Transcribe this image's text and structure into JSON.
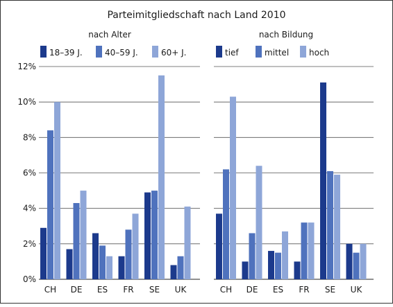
{
  "chart_data": [
    {
      "type": "bar",
      "title": "Parteimitgliedschaft nach Land 2010",
      "subtitle": "nach Alter",
      "categories": [
        "CH",
        "DE",
        "ES",
        "FR",
        "SE",
        "UK"
      ],
      "y_ticks": [
        "0%",
        "2%",
        "4%",
        "6%",
        "8%",
        "10%",
        "12%"
      ],
      "ylim": [
        0,
        12
      ],
      "y_unit": "%",
      "grid": true,
      "legend_position": "top-left",
      "series": [
        {
          "name": "18–39 J.",
          "color": "#1c3a8c",
          "values": [
            2.9,
            1.7,
            2.6,
            1.3,
            4.9,
            0.8
          ]
        },
        {
          "name": "40–59 J.",
          "color": "#4f72bd",
          "values": [
            8.4,
            4.3,
            1.9,
            2.8,
            5.0,
            1.3
          ]
        },
        {
          "name": "60+ J.",
          "color": "#8ea6d8",
          "values": [
            10.0,
            5.0,
            1.3,
            3.7,
            11.5,
            4.1
          ]
        }
      ]
    },
    {
      "type": "bar",
      "subtitle": "nach Bildung",
      "categories": [
        "CH",
        "DE",
        "ES",
        "FR",
        "SE",
        "UK"
      ],
      "ylim": [
        0,
        12
      ],
      "y_unit": "%",
      "grid": true,
      "legend_position": "top-left",
      "series": [
        {
          "name": "tief",
          "color": "#1c3a8c",
          "values": [
            3.7,
            1.0,
            1.6,
            1.0,
            11.1,
            2.0
          ]
        },
        {
          "name": "mittel",
          "color": "#4f72bd",
          "values": [
            6.2,
            2.6,
            1.5,
            3.2,
            6.1,
            1.5
          ]
        },
        {
          "name": "hoch",
          "color": "#8ea6d8",
          "values": [
            10.3,
            6.4,
            2.7,
            3.2,
            5.9,
            2.0
          ]
        }
      ]
    }
  ]
}
